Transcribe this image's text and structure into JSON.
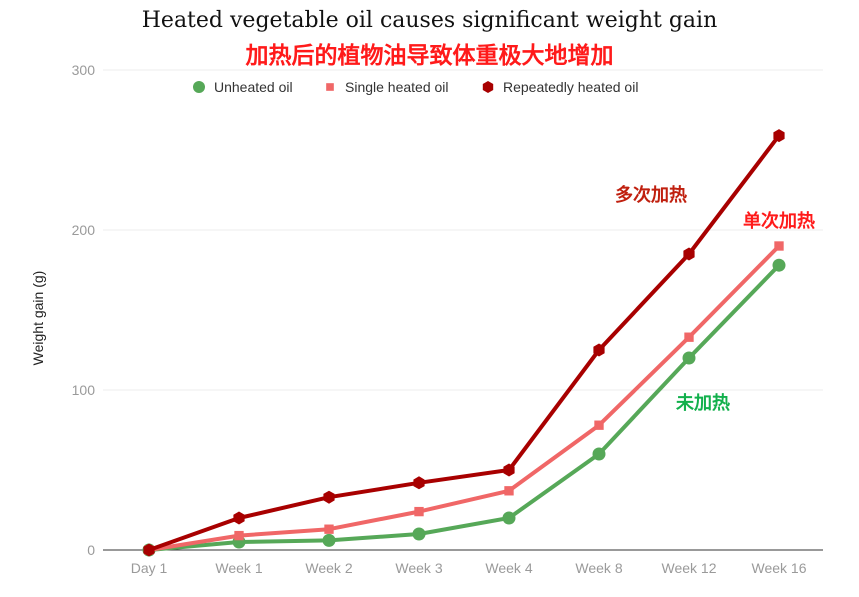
{
  "chart_data": {
    "type": "line",
    "title": "Heated vegetable oil causes significant weight gain",
    "subtitle": "加热后的植物油导致体重极大地增加",
    "ylabel": "Weight gain (g)",
    "xlabel": "",
    "categories": [
      "Day 1",
      "Week 1",
      "Week 2",
      "Week 3",
      "Week 4",
      "Week 8",
      "Week 12",
      "Week 16"
    ],
    "ylim": [
      0,
      300
    ],
    "yticks": [
      0,
      100,
      200,
      300
    ],
    "grid": true,
    "legend_position": "top",
    "series": [
      {
        "name": "Unheated oil",
        "color": "#56a858",
        "marker": "circle",
        "values": [
          0,
          5,
          6,
          10,
          20,
          60,
          120,
          178
        ]
      },
      {
        "name": "Single heated oil",
        "color": "#f06767",
        "marker": "square",
        "values": [
          0,
          9,
          13,
          24,
          37,
          78,
          133,
          190
        ]
      },
      {
        "name": "Repeatedly heated oil",
        "color": "#a80000",
        "marker": "hexagon",
        "values": [
          0,
          20,
          33,
          42,
          50,
          125,
          185,
          259
        ]
      }
    ],
    "annotations": [
      {
        "text": "多次加热",
        "color": "#c0200f",
        "x": "Week 12",
        "y": 218
      },
      {
        "text": "单次加热",
        "color": "#ff1a1a",
        "x": "Week 16",
        "y": 202
      },
      {
        "text": "未加热",
        "color": "#12b04c",
        "x": "Week 12",
        "y": 88
      }
    ]
  }
}
